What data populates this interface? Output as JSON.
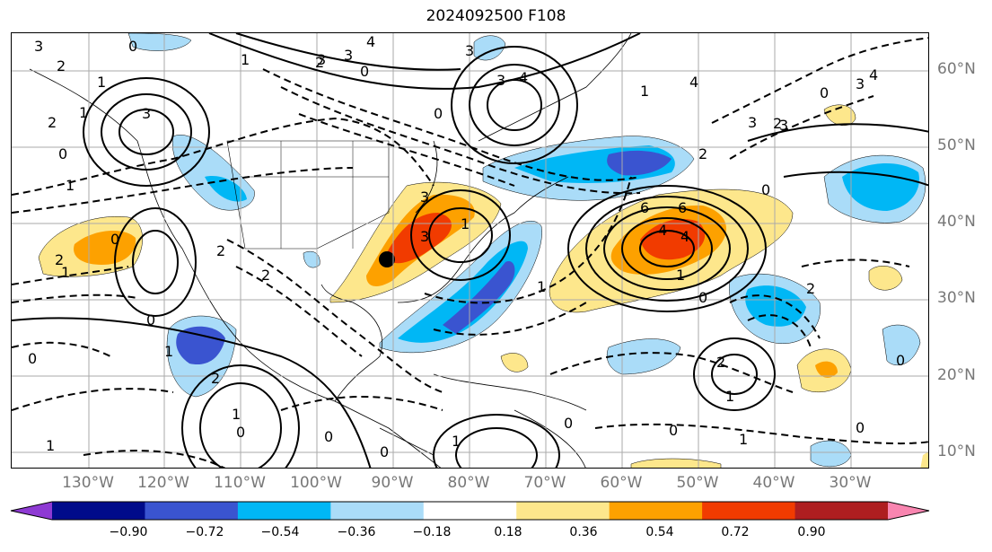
{
  "title": "2024092500 F108",
  "lat_labels": [
    "60°N",
    "50°N",
    "40°N",
    "30°N",
    "20°N",
    "10°N"
  ],
  "lon_labels": [
    "130°W",
    "120°W",
    "110°W",
    "100°W",
    "90°W",
    "80°W",
    "70°W",
    "60°W",
    "50°W",
    "40°W",
    "30°W"
  ],
  "colorbar": {
    "ticks": [
      "−0.90",
      "−0.72",
      "−0.54",
      "−0.36",
      "−0.18",
      "0.18",
      "0.36",
      "0.54",
      "0.72",
      "0.90"
    ],
    "colors": [
      "#8e3ad3",
      "#000b8a",
      "#3a54d0",
      "#00b7f5",
      "#aadcf8",
      "#ffffff",
      "#fde78c",
      "#fda100",
      "#f13b00",
      "#ae1e20",
      "#f985b0"
    ]
  },
  "contour_labels": [
    "3",
    "2",
    "1",
    "3",
    "2",
    "1",
    "3",
    "4",
    "3",
    "3",
    "4",
    "0",
    "3",
    "4",
    "3",
    "2",
    "1",
    "0",
    "1",
    "2",
    "3",
    "0",
    "1",
    "0",
    "2",
    "3",
    "4",
    "6",
    "6",
    "4",
    "2",
    "0",
    "1",
    "1",
    "2",
    "1",
    "2",
    "0",
    "2",
    "0",
    "2",
    "1",
    "0",
    "1",
    "1",
    "0",
    "0",
    "0",
    "1",
    "0",
    "0",
    "0",
    "3",
    "4",
    "3",
    "2",
    "1",
    "1",
    "0",
    "0",
    "1",
    "0"
  ],
  "grid": "on"
}
